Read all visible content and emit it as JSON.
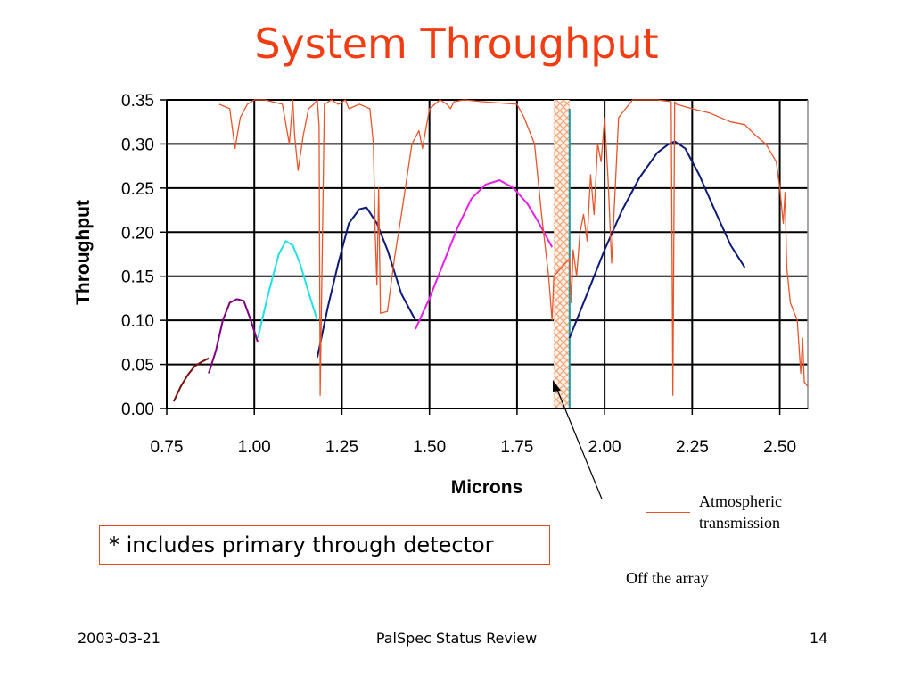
{
  "slide": {
    "title": "System Throughput",
    "note": "* includes primary through detector",
    "legend_label_line1": "Atmospheric",
    "legend_label_line2": "transmission",
    "callout_label": "Off the array",
    "footer_date": "2003-03-21",
    "footer_center": "PalSpec Status Review",
    "footer_page": "14"
  },
  "colors": {
    "title": "#f23c12",
    "atmosphere": "#e8552b",
    "off_array_hatch": "#f4a57a"
  },
  "chart_data": {
    "type": "line",
    "xlabel": "Microns",
    "ylabel": "Throughput",
    "xlim": [
      0.75,
      2.58
    ],
    "ylim": [
      0.0,
      0.35
    ],
    "grid": true,
    "x_ticks": [
      "0.75",
      "1.00",
      "1.25",
      "1.50",
      "1.75",
      "2.00",
      "2.25",
      "2.50"
    ],
    "y_ticks": [
      "0.00",
      "0.05",
      "0.10",
      "0.15",
      "0.20",
      "0.25",
      "0.30",
      "0.35"
    ],
    "off_array_band": [
      1.855,
      1.9
    ],
    "series": [
      {
        "color": "#7b1010",
        "x": [
          0.77,
          0.79,
          0.81,
          0.83,
          0.85,
          0.87
        ],
        "y": [
          0.008,
          0.025,
          0.038,
          0.048,
          0.053,
          0.057
        ]
      },
      {
        "color": "#800080",
        "x": [
          0.87,
          0.89,
          0.91,
          0.93,
          0.95,
          0.97,
          0.99,
          1.01
        ],
        "y": [
          0.04,
          0.065,
          0.1,
          0.12,
          0.124,
          0.122,
          0.1,
          0.075
        ]
      },
      {
        "color": "#22e0e6",
        "x": [
          1.01,
          1.04,
          1.07,
          1.09,
          1.11,
          1.13,
          1.16,
          1.18
        ],
        "y": [
          0.08,
          0.13,
          0.175,
          0.19,
          0.185,
          0.165,
          0.125,
          0.1
        ]
      },
      {
        "color": "#0c1a78",
        "x": [
          1.18,
          1.21,
          1.24,
          1.27,
          1.3,
          1.32,
          1.35,
          1.38,
          1.42,
          1.46
        ],
        "y": [
          0.058,
          0.115,
          0.165,
          0.21,
          0.226,
          0.228,
          0.21,
          0.18,
          0.13,
          0.1
        ]
      },
      {
        "color": "#e620e6",
        "x": [
          1.46,
          1.5,
          1.54,
          1.58,
          1.62,
          1.66,
          1.7,
          1.74,
          1.78,
          1.81,
          1.85
        ],
        "y": [
          0.09,
          0.125,
          0.165,
          0.205,
          0.238,
          0.254,
          0.259,
          0.25,
          0.232,
          0.212,
          0.183
        ]
      },
      {
        "color": "#0c1a78",
        "x": [
          1.9,
          1.95,
          2.0,
          2.05,
          2.1,
          2.15,
          2.18,
          2.2,
          2.23,
          2.27,
          2.32,
          2.36,
          2.4
        ],
        "y": [
          0.08,
          0.13,
          0.18,
          0.225,
          0.262,
          0.29,
          0.299,
          0.303,
          0.295,
          0.265,
          0.22,
          0.185,
          0.16
        ]
      },
      {
        "name": "Atmospheric transmission",
        "color": "#e8552b",
        "x": [
          0.9,
          0.93,
          0.945,
          0.96,
          0.98,
          1.0,
          1.03,
          1.08,
          1.1,
          1.11,
          1.115,
          1.125,
          1.14,
          1.155,
          1.17,
          1.18,
          1.185,
          1.188,
          1.2,
          1.22,
          1.24,
          1.26,
          1.27,
          1.3,
          1.33,
          1.34,
          1.345,
          1.35,
          1.355,
          1.36,
          1.38,
          1.4,
          1.42,
          1.45,
          1.47,
          1.48,
          1.5,
          1.53,
          1.55,
          1.56,
          1.57,
          1.6,
          1.65,
          1.75,
          1.77,
          1.8,
          1.82,
          1.84,
          1.85,
          1.855,
          1.9,
          1.905,
          1.91,
          1.92,
          1.93,
          1.94,
          1.95,
          1.96,
          1.97,
          1.98,
          1.99,
          2.0,
          2.01,
          2.02,
          2.04,
          2.06,
          2.08,
          2.1,
          2.15,
          2.19,
          2.195,
          2.2,
          2.205,
          2.25,
          2.3,
          2.36,
          2.4,
          2.43,
          2.46,
          2.49,
          2.5,
          2.51,
          2.515,
          2.52,
          2.53,
          2.55,
          2.56,
          2.565,
          2.57,
          2.58
        ],
        "y": [
          0.345,
          0.34,
          0.295,
          0.33,
          0.345,
          0.35,
          0.35,
          0.345,
          0.3,
          0.35,
          0.31,
          0.27,
          0.31,
          0.34,
          0.345,
          0.35,
          0.32,
          0.015,
          0.345,
          0.35,
          0.345,
          0.35,
          0.34,
          0.345,
          0.34,
          0.3,
          0.2,
          0.14,
          0.25,
          0.108,
          0.11,
          0.17,
          0.22,
          0.3,
          0.315,
          0.295,
          0.34,
          0.35,
          0.345,
          0.34,
          0.348,
          0.35,
          0.348,
          0.345,
          0.33,
          0.3,
          0.22,
          0.15,
          0.1,
          0.15,
          0.17,
          0.12,
          0.18,
          0.15,
          0.2,
          0.22,
          0.19,
          0.265,
          0.22,
          0.3,
          0.28,
          0.33,
          0.26,
          0.165,
          0.33,
          0.34,
          0.35,
          0.35,
          0.35,
          0.348,
          0.015,
          0.348,
          0.345,
          0.34,
          0.335,
          0.325,
          0.322,
          0.31,
          0.3,
          0.28,
          0.25,
          0.21,
          0.245,
          0.16,
          0.12,
          0.1,
          0.04,
          0.08,
          0.03,
          0.025
        ]
      }
    ]
  }
}
